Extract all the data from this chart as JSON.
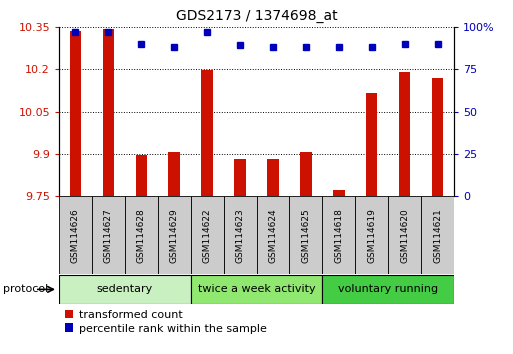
{
  "title": "GDS2173 / 1374698_at",
  "samples": [
    "GSM114626",
    "GSM114627",
    "GSM114628",
    "GSM114629",
    "GSM114622",
    "GSM114623",
    "GSM114624",
    "GSM114625",
    "GSM114618",
    "GSM114619",
    "GSM114620",
    "GSM114621"
  ],
  "red_values": [
    10.335,
    10.343,
    9.898,
    9.908,
    10.196,
    9.884,
    9.882,
    9.906,
    9.772,
    10.115,
    10.188,
    10.168
  ],
  "blue_values": [
    97,
    97,
    90,
    88,
    97,
    89,
    88,
    88,
    88,
    88,
    90,
    90
  ],
  "y_min": 9.75,
  "y_max": 10.35,
  "y_ticks": [
    9.75,
    9.9,
    10.05,
    10.2,
    10.35
  ],
  "y_tick_labels": [
    "9.75",
    "9.9",
    "10.05",
    "10.2",
    "10.35"
  ],
  "y2_ticks": [
    0,
    25,
    50,
    75,
    100
  ],
  "y2_tick_labels": [
    "0",
    "25",
    "50",
    "75",
    "100%"
  ],
  "groups": [
    {
      "label": "sedentary",
      "start": 0,
      "end": 4,
      "color": "#c8f0c0"
    },
    {
      "label": "twice a week activity",
      "start": 4,
      "end": 8,
      "color": "#90e870"
    },
    {
      "label": "voluntary running",
      "start": 8,
      "end": 12,
      "color": "#44cc44"
    }
  ],
  "bar_color": "#cc1100",
  "dot_color": "#0000bb",
  "bar_width": 0.35,
  "tick_color_left": "#cc1100",
  "tick_color_right": "#0000bb",
  "legend_red_label": "transformed count",
  "legend_blue_label": "percentile rank within the sample",
  "protocol_label": "protocol"
}
